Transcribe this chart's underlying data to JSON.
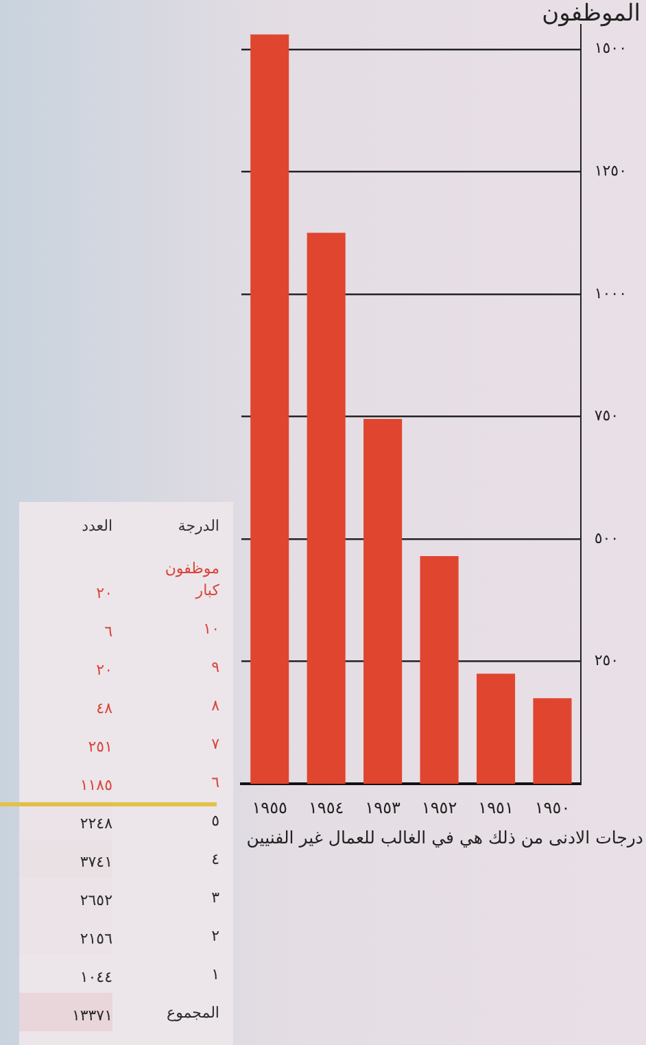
{
  "chart_data": [
    {
      "type": "bar",
      "ylabel": "الموظفون",
      "categories": [
        "١٩٥٥",
        "١٩٥٤",
        "١٩٥٣",
        "١٩٥٢",
        "١٩٥١",
        "١٩٥٠"
      ],
      "values": [
        1530,
        1125,
        745,
        465,
        225,
        175
      ],
      "color": "#e0452f",
      "yticks": [
        {
          "value": 250,
          "label": "٢٥٠"
        },
        {
          "value": 500,
          "label": "٥٠٠"
        },
        {
          "value": 750,
          "label": "٧٥٠"
        },
        {
          "value": 1000,
          "label": "١٠٠٠"
        },
        {
          "value": 1250,
          "label": "١٢٥٠"
        },
        {
          "value": 1500,
          "label": "١٥٠٠"
        }
      ],
      "ylim": [
        0,
        1550
      ],
      "grid": "y",
      "legend": false,
      "annotations": [
        "درجات الادنى من ذلك هي في الغالب للعمال غير الفنيين"
      ]
    },
    {
      "type": "heatmap",
      "ylabel": "الدرجة",
      "categories": [
        "العدد"
      ],
      "y_categories": [
        "موظفون كبار",
        "١٠",
        "٩",
        "٨",
        "٧",
        "٦",
        "٥",
        "٤",
        "٣",
        "٢",
        "١",
        "المجموع"
      ],
      "cells": [
        [
          20
        ],
        [
          6
        ],
        [
          20
        ],
        [
          48
        ],
        [
          251
        ],
        [
          1185
        ],
        [
          2248
        ],
        [
          3741
        ],
        [
          2652
        ],
        [
          2156
        ],
        [
          1044
        ],
        [
          13371
        ]
      ],
      "cell_labels": [
        [
          "٢٠"
        ],
        [
          "٦"
        ],
        [
          "٢٠"
        ],
        [
          "٤٨"
        ],
        [
          "٢٥١"
        ],
        [
          "١١٨٥"
        ],
        [
          "٢٢٤٨"
        ],
        [
          "٣٧٤١"
        ],
        [
          "٢٦٥٢"
        ],
        [
          "٢١٥٦"
        ],
        [
          "١٠٤٤"
        ],
        [
          "١٣٣٧١"
        ]
      ],
      "colors": [
        "#d9443a",
        "#d9443a",
        "#d9443a",
        "#d9443a",
        "#d9443a",
        "#d9443a",
        "#2a2a2a",
        "#2a2a2a",
        "#2a2a2a",
        "#2a2a2a",
        "#2a2a2a",
        "#2a2a2a"
      ]
    }
  ]
}
